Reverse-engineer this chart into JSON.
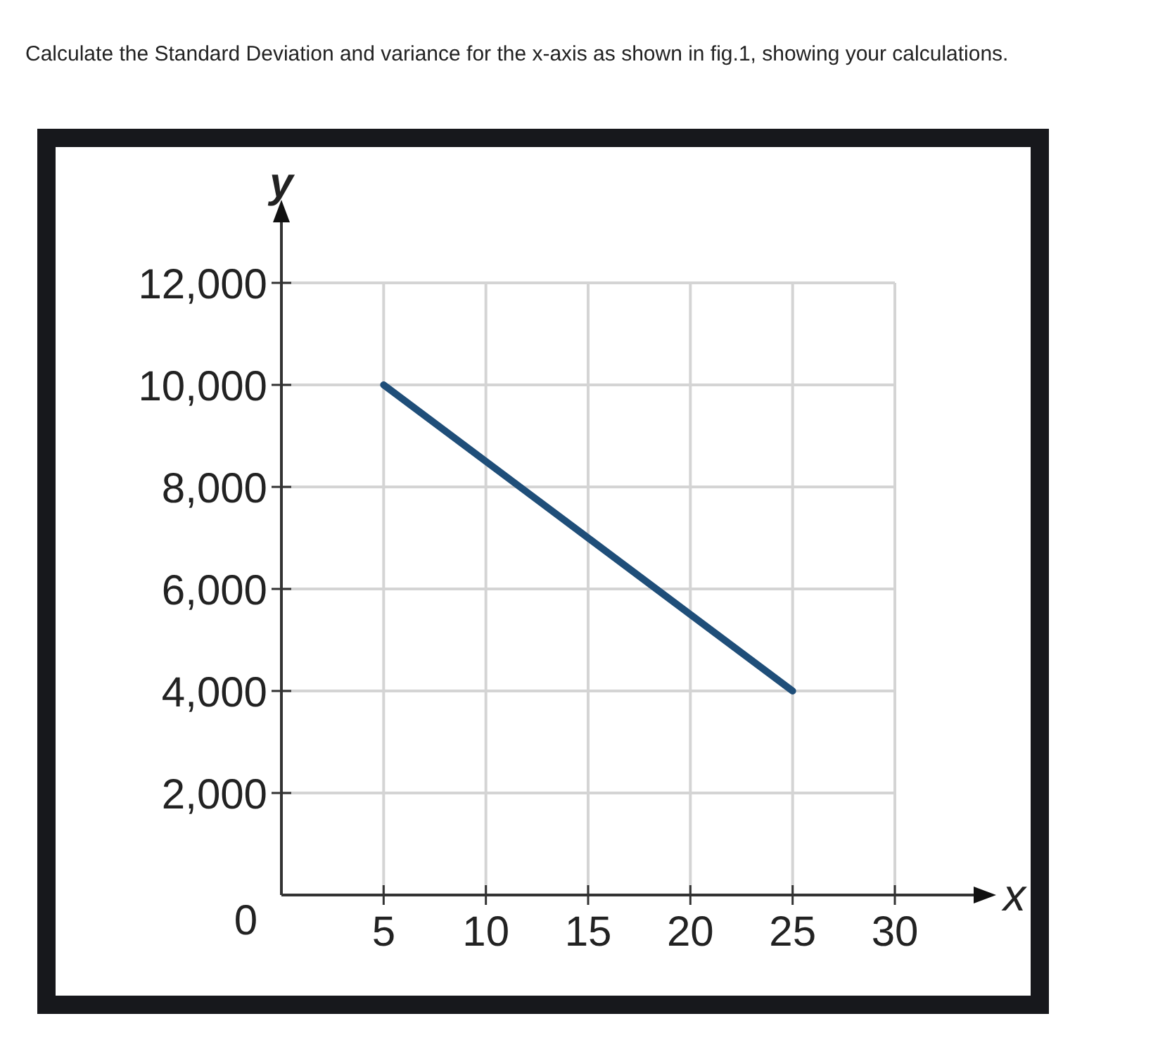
{
  "chart_data": {
    "type": "line",
    "title": "Calculate the Standard Deviation and variance for the x-axis as shown in fig.1, showing your calculations.",
    "xlabel": "x",
    "ylabel": "y",
    "x": [
      5,
      25
    ],
    "series": [
      {
        "color": "#1f4e79",
        "values": [
          10000,
          4000
        ]
      }
    ],
    "xlim": [
      0,
      30
    ],
    "xticks": [
      5,
      10,
      15,
      20,
      25,
      30
    ],
    "ylim": [
      0,
      12000
    ],
    "yticks": [
      {
        "value": 0,
        "label": "0"
      },
      {
        "value": 2000,
        "label": "2,000"
      },
      {
        "value": 4000,
        "label": "4,000"
      },
      {
        "value": 6000,
        "label": "6,000"
      },
      {
        "value": 8000,
        "label": "8,000"
      },
      {
        "value": 10000,
        "label": "10,000"
      },
      {
        "value": 12000,
        "label": "12,000"
      }
    ],
    "grid": true,
    "marker": "none",
    "line_style": "solid"
  }
}
